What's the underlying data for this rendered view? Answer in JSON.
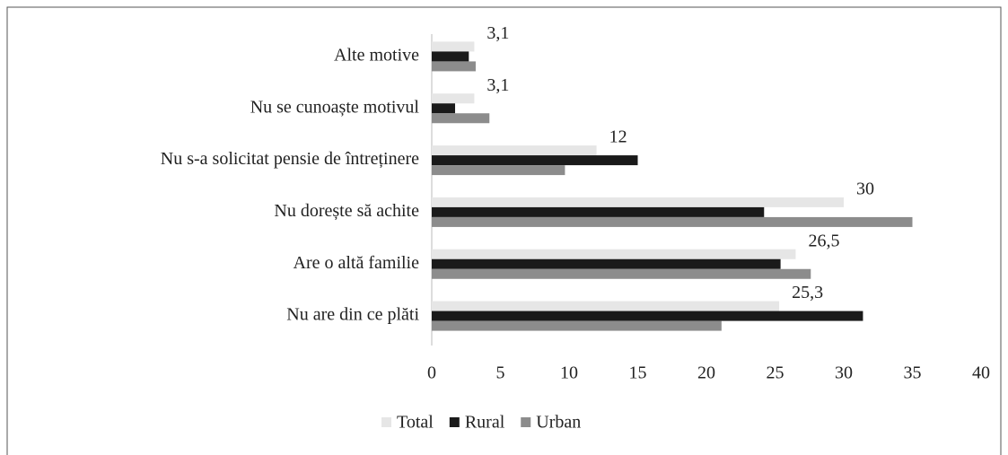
{
  "chart_data": {
    "type": "hbar",
    "categories": [
      "Alte motive",
      "Nu se cunoaște motivul",
      "Nu s-a solicitat pensie de întreținere",
      "Nu dorește să achite",
      "Are o altă familie",
      "Nu are din ce plăti"
    ],
    "series": [
      {
        "name": "Total",
        "color": "#e6e6e6",
        "values": [
          3.1,
          3.1,
          12,
          30,
          26.5,
          25.3
        ],
        "value_labels": [
          "3,1",
          "3,1",
          "12",
          "30",
          "26,5",
          "25,3"
        ]
      },
      {
        "name": "Rural",
        "color": "#1a1a1a",
        "values": [
          2.7,
          1.7,
          15.0,
          24.2,
          25.4,
          31.4
        ]
      },
      {
        "name": "Urban",
        "color": "#8c8c8c",
        "values": [
          3.2,
          4.2,
          9.7,
          35.0,
          27.6,
          21.1
        ]
      }
    ],
    "xlim": [
      0,
      40
    ],
    "xticks": [
      0,
      5,
      10,
      15,
      20,
      25,
      30,
      35,
      40
    ],
    "grid": false,
    "legend": "bottom"
  }
}
